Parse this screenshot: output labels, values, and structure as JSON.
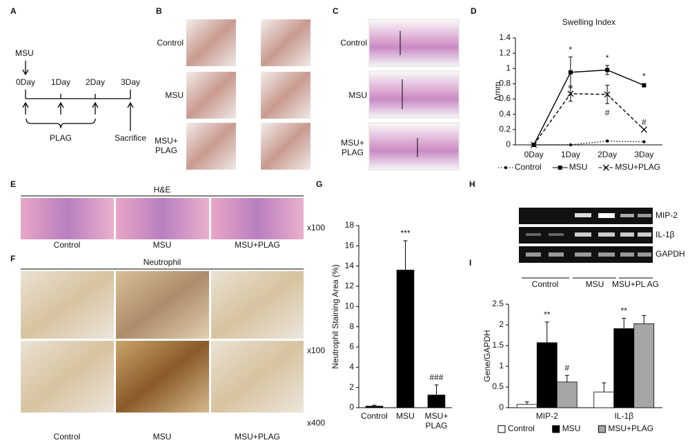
{
  "panel_letters": [
    "A",
    "B",
    "C",
    "D",
    "E",
    "F",
    "G",
    "H",
    "I"
  ],
  "timeline": {
    "injection": "MSU",
    "days": [
      "0Day",
      "1Day",
      "2Day",
      "3Day"
    ],
    "treatment": "PLAG",
    "end": "Sacrifice"
  },
  "photos": {
    "rows": [
      "Control",
      "MSU",
      "MSU+ PLAG"
    ]
  },
  "sections": {
    "rows": [
      "Control",
      "MSU",
      "MSU+ PLAG"
    ]
  },
  "he": {
    "title": "H&E",
    "labels": [
      "Control",
      "MSU",
      "MSU+PLAG"
    ],
    "magnification": "x100"
  },
  "neutrophil": {
    "title": "Neutrophil",
    "labels": [
      "Control",
      "MSU",
      "MSU+PLAG"
    ],
    "magnifications": [
      "x100",
      "x400"
    ]
  },
  "gel": {
    "genes": [
      "MIP-2",
      "IL-1β",
      "GAPDH"
    ],
    "groups": [
      "Control",
      "MSU",
      "MSU+PL AG"
    ]
  },
  "chart_data": [
    {
      "type": "line",
      "title": "Swelling Index",
      "y_label": "Δmm",
      "categories": [
        "0Day",
        "1Day",
        "2Day",
        "3Day"
      ],
      "series": [
        {
          "name": "Control",
          "color": "#000000",
          "line": "dotted",
          "marker": "circle",
          "values": [
            0,
            0,
            0.05,
            0.04
          ],
          "errors": [
            0,
            0,
            0,
            0
          ]
        },
        {
          "name": "MSU",
          "color": "#000000",
          "line": "solid",
          "marker": "square",
          "values": [
            0,
            0.95,
            0.98,
            0.78
          ],
          "errors": [
            0,
            0.2,
            0.06,
            0.02
          ]
        },
        {
          "name": "MSU+PLAG",
          "color": "#000000",
          "line": "dashed",
          "marker": "x",
          "values": [
            0,
            0.67,
            0.66,
            0.2
          ],
          "errors": [
            0,
            0.1,
            0.12,
            0
          ]
        }
      ],
      "annotations": [
        {
          "text": "*",
          "series": 1,
          "index": 1
        },
        {
          "text": "*",
          "series": 1,
          "index": 2
        },
        {
          "text": "*",
          "series": 1,
          "index": 3
        },
        {
          "text": "#",
          "series": 2,
          "index": 2,
          "below": true
        },
        {
          "text": "#",
          "series": 2,
          "index": 3
        }
      ],
      "ylim": [
        0,
        1.4
      ],
      "yticks": [
        0,
        0.2,
        0.4,
        0.6,
        0.8,
        1,
        1.2,
        1.4
      ],
      "legend": "bottom"
    },
    {
      "type": "bar",
      "y_label": "Neutrophil Staining Area (%)",
      "categories": [
        "Control",
        "MSU",
        "MSU+ PLAG"
      ],
      "values": [
        0.15,
        13.6,
        1.25
      ],
      "errors": [
        0.1,
        2.9,
        1.0
      ],
      "color": "#000000",
      "annotations": [
        {
          "text": "***",
          "index": 1
        },
        {
          "text": "###",
          "index": 2
        }
      ],
      "ylim": [
        0,
        18
      ],
      "yticks": [
        0,
        2,
        4,
        6,
        8,
        10,
        12,
        14,
        16,
        18
      ]
    },
    {
      "type": "bar",
      "y_label": "Gene/GAPDH",
      "categories": [
        "MIP-2",
        "IL-1β"
      ],
      "series": [
        {
          "name": "Control",
          "color": "#ffffff",
          "values": [
            0.08,
            0.38
          ],
          "errors": [
            0.06,
            0.22
          ]
        },
        {
          "name": "MSU",
          "color": "#000000",
          "values": [
            1.57,
            1.91
          ],
          "errors": [
            0.5,
            0.25
          ]
        },
        {
          "name": "MSU+PLAG",
          "color": "#a6a6a6",
          "values": [
            0.62,
            2.03
          ],
          "errors": [
            0.16,
            0.2
          ]
        }
      ],
      "annotations": [
        {
          "text": "**",
          "series": 1,
          "index": 0
        },
        {
          "text": "#",
          "series": 2,
          "index": 0
        },
        {
          "text": "**",
          "series": 1,
          "index": 1
        }
      ],
      "ylim": [
        0,
        2.5
      ],
      "yticks": [
        0,
        0.5,
        1,
        1.5,
        2,
        2.5
      ],
      "legend": "bottom"
    }
  ]
}
